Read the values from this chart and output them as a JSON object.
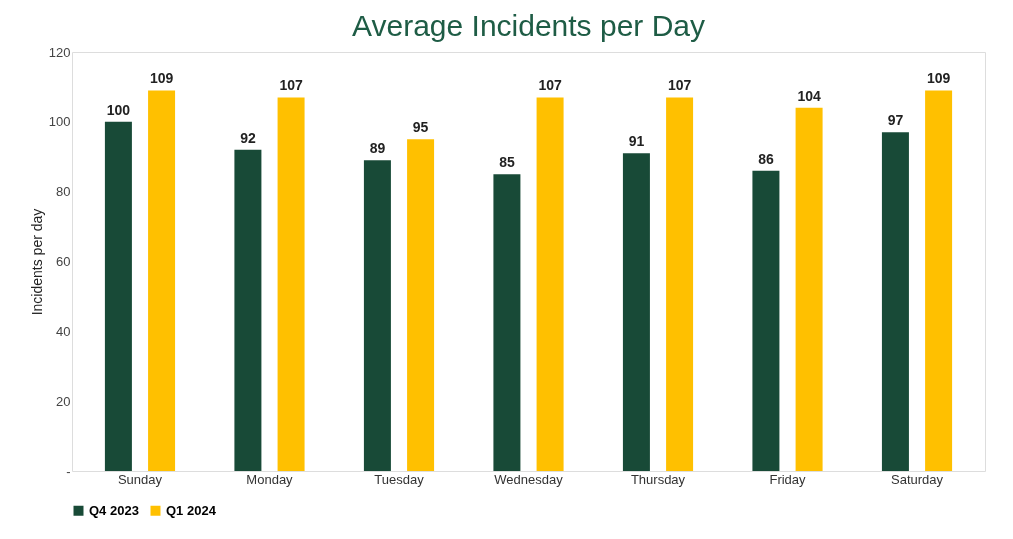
{
  "chart_data": {
    "type": "bar",
    "title": "Average Incidents per Day",
    "ylabel": "Incidents per day",
    "categories": [
      "Sunday",
      "Monday",
      "Tuesday",
      "Wednesday",
      "Thursday",
      "Friday",
      "Saturday"
    ],
    "series": [
      {
        "name": "Q4 2023",
        "color": "#184a37",
        "values": [
          100,
          92,
          89,
          85,
          91,
          86,
          97
        ]
      },
      {
        "name": "Q1 2024",
        "color": "#ffc000",
        "values": [
          109,
          107,
          95,
          107,
          107,
          104,
          109
        ]
      }
    ],
    "ylim": [
      0,
      120
    ],
    "yticks": [
      {
        "value": 0,
        "label": "-"
      },
      20,
      40,
      60,
      80,
      100,
      120
    ],
    "data_labels": true,
    "legend": "bottom",
    "grid": false
  }
}
